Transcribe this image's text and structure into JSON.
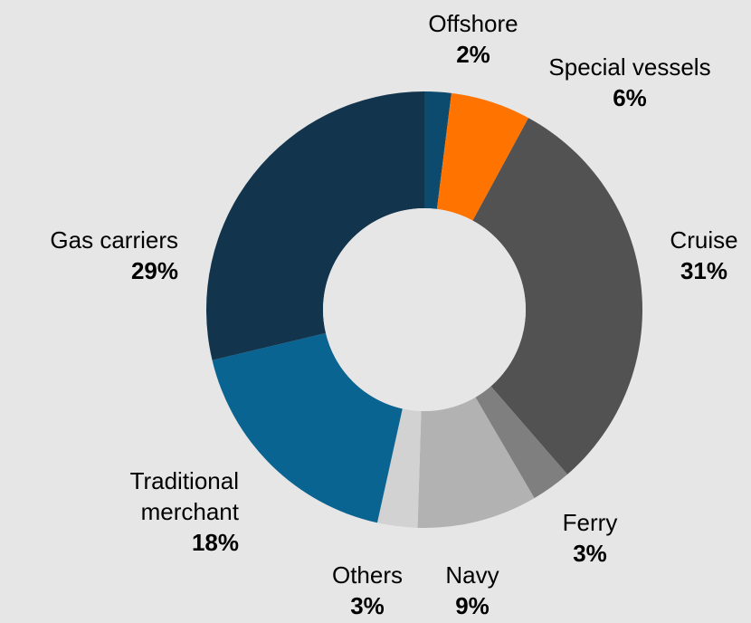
{
  "chart_data": {
    "type": "pie",
    "variant": "donut",
    "start_angle_deg": 0,
    "direction": "clockwise",
    "slices": [
      {
        "label": "Offshore",
        "label_lines": [
          "Offshore"
        ],
        "value": 2,
        "display": "2%",
        "color": "#0c4a6e"
      },
      {
        "label": "Special vessels",
        "label_lines": [
          "Special vessels"
        ],
        "value": 6,
        "display": "6%",
        "color": "#ff7300"
      },
      {
        "label": "Cruise",
        "label_lines": [
          "Cruise"
        ],
        "value": 31,
        "display": "31%",
        "color": "#525252"
      },
      {
        "label": "Ferry",
        "label_lines": [
          "Ferry"
        ],
        "value": 3,
        "display": "3%",
        "color": "#7f7f7f"
      },
      {
        "label": "Navy",
        "label_lines": [
          "Navy"
        ],
        "value": 9,
        "display": "9%",
        "color": "#b2b2b2"
      },
      {
        "label": "Others",
        "label_lines": [
          "Others"
        ],
        "value": 3,
        "display": "3%",
        "color": "#d2d2d2"
      },
      {
        "label": "Traditional merchant",
        "label_lines": [
          "Traditional",
          "merchant"
        ],
        "value": 18,
        "display": "18%",
        "color": "#0a6491"
      },
      {
        "label": "Gas carriers",
        "label_lines": [
          "Gas carriers"
        ],
        "value": 29,
        "display": "29%",
        "color": "#12344c"
      }
    ],
    "background": "#e6e6e6",
    "legend": "none"
  }
}
